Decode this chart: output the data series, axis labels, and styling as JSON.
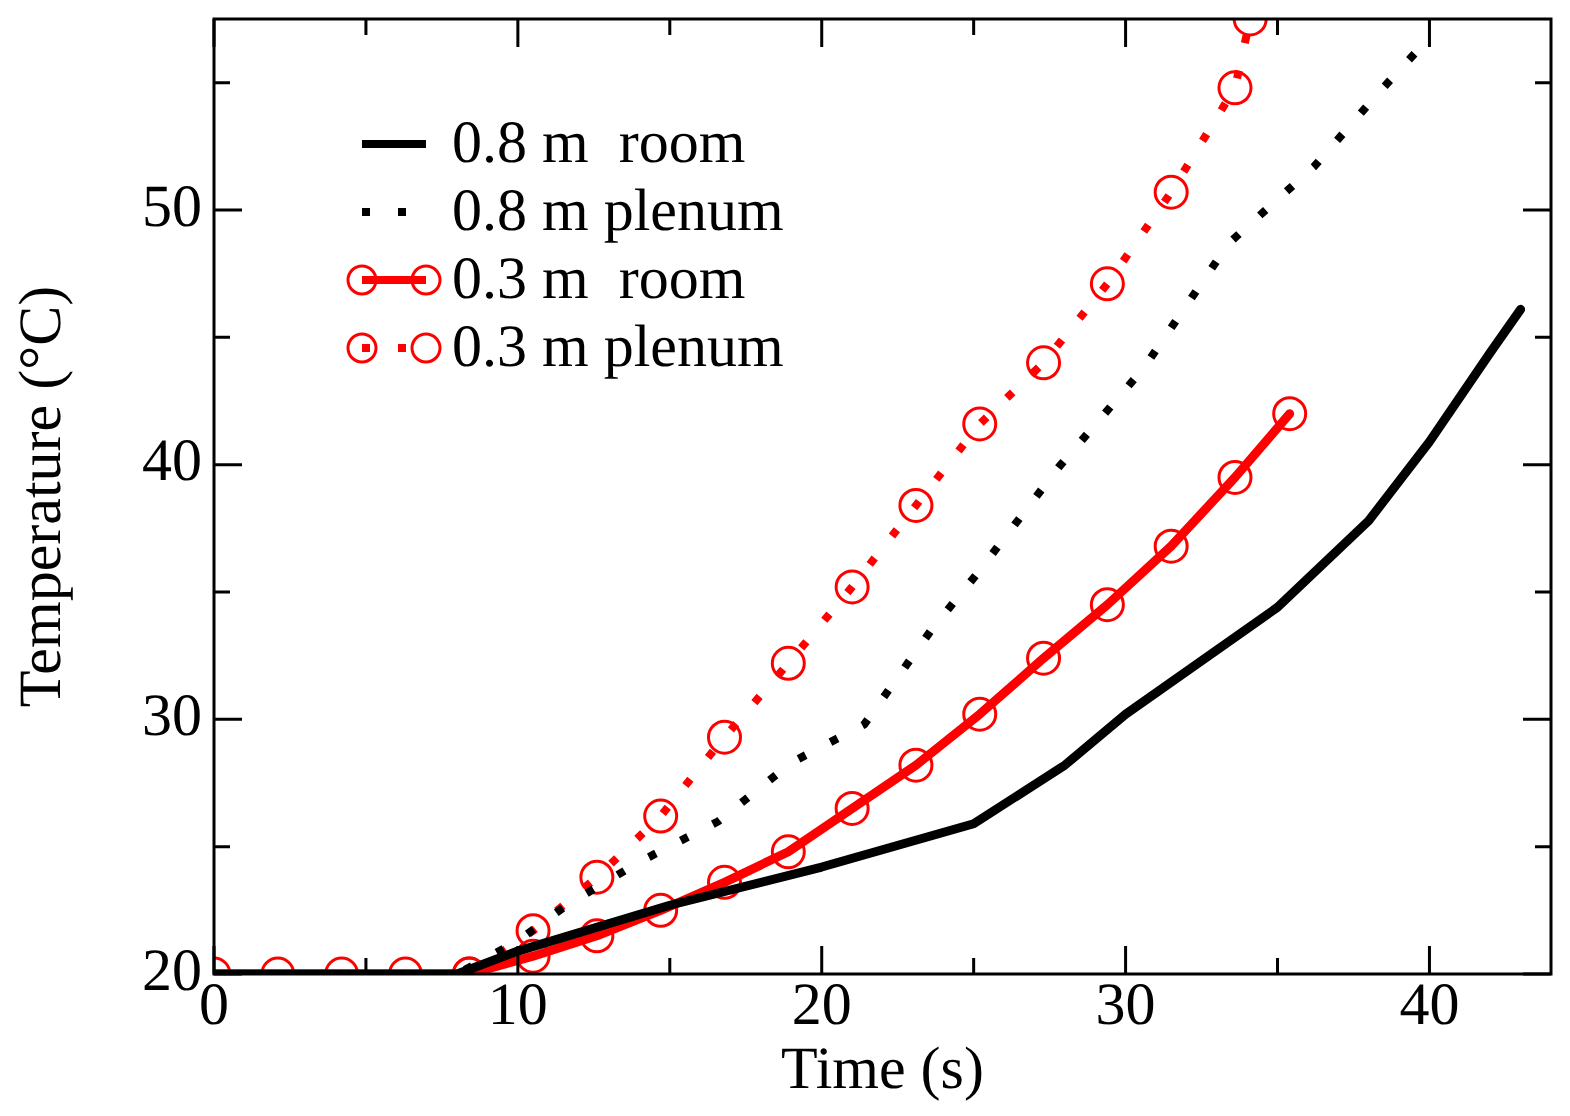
{
  "chart_data": {
    "type": "line",
    "xlabel": "Time (s)",
    "ylabel": "Temperature (°C)",
    "xlim": [
      0,
      44
    ],
    "ylim": [
      20,
      57.5
    ],
    "xticks": [
      0,
      {
        "value": 5,
        "label": null
      },
      10,
      {
        "value": 15,
        "label": null
      },
      20,
      {
        "value": 25,
        "label": null
      },
      30,
      {
        "value": 35,
        "label": null
      },
      40
    ],
    "yticks": [
      20,
      {
        "value": 25,
        "label": null
      },
      30,
      {
        "value": 35,
        "label": null
      },
      40,
      {
        "value": 45,
        "label": null
      },
      50,
      {
        "value": 55,
        "label": null
      }
    ],
    "grid": false,
    "legend": "top left",
    "series": [
      {
        "name": "0.8 m  room",
        "color": "#000000",
        "line_style": "solid",
        "marker": "none",
        "x": [
          0,
          8,
          10,
          15,
          20,
          25,
          28,
          30,
          35,
          38,
          40,
          42,
          43
        ],
        "values": [
          20,
          20,
          20.9,
          22.7,
          24.2,
          25.9,
          28.2,
          30.2,
          34.4,
          37.8,
          40.9,
          44.4,
          46.1
        ]
      },
      {
        "name": "0.8 m plenum",
        "color": "#000000",
        "line_style": "dotted",
        "marker": "none",
        "x": [
          0,
          8,
          10,
          11.6,
          14,
          16.6,
          19,
          21.4,
          23.6,
          25.1,
          27.8,
          30.6,
          33.4,
          36.2,
          38.4,
          40.1
        ],
        "values": [
          20,
          20,
          21.3,
          22.7,
          24.4,
          26,
          28.3,
          29.8,
          33.5,
          35.7,
          39.9,
          43.8,
          48.7,
          51.7,
          54.7,
          56.9
        ]
      },
      {
        "name": "0.3 m  room",
        "color": "#ff0000",
        "line_style": "solid",
        "marker": "circle",
        "x": [
          0,
          2.1,
          4.2,
          6.3,
          8.4,
          10.5,
          12.6,
          14.7,
          16.8,
          18.9,
          21,
          23.1,
          25.2,
          27.3,
          29.4,
          31.5,
          33.6,
          35.4
        ],
        "values": [
          20,
          20,
          20,
          20,
          20,
          20.7,
          21.5,
          22.5,
          23.6,
          24.8,
          26.5,
          28.2,
          30.2,
          32.4,
          34.5,
          36.8,
          39.5,
          42
        ]
      },
      {
        "name": "0.3 m plenum",
        "color": "#ff0000",
        "line_style": "dotted",
        "marker": "circle",
        "x": [
          8.4,
          10.5,
          12.6,
          14.7,
          16.8,
          18.9,
          21,
          23.1,
          25.2,
          27.3,
          29.4,
          31.5,
          33.6,
          34.1
        ],
        "values": [
          20,
          21.7,
          23.8,
          26.2,
          29.3,
          32.2,
          35.2,
          38.4,
          41.6,
          44,
          47.1,
          50.7,
          54.8,
          57.5
        ]
      }
    ]
  }
}
